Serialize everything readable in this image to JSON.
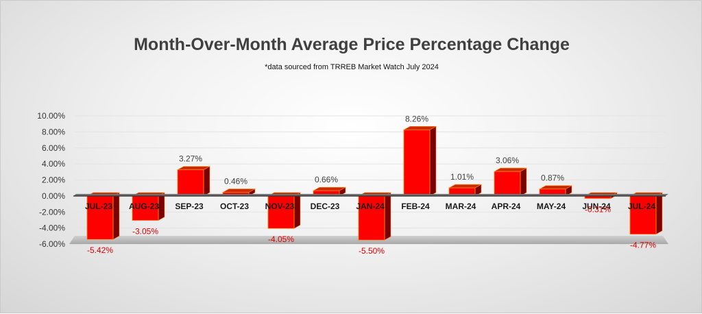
{
  "chart_data": {
    "type": "bar",
    "title": "Month-Over-Month Average Price Percentage Change",
    "subtitle": "*data sourced from TRREB Market Watch July 2024",
    "xlabel": "",
    "ylabel": "",
    "ylim": [
      -6,
      10
    ],
    "y_ticks": [
      "10.00%",
      "8.00%",
      "6.00%",
      "4.00%",
      "2.00%",
      "0.00%",
      "-2.00%",
      "-4.00%",
      "-6.00%"
    ],
    "categories": [
      "JUL-23",
      "AUG-23",
      "SEP-23",
      "OCT-23",
      "NOV-23",
      "DEC-23",
      "JAN-24",
      "FEB-24",
      "MAR-24",
      "APR-24",
      "MAY-24",
      "JUN-24",
      "JUL-24"
    ],
    "values": [
      -5.42,
      -3.05,
      3.27,
      0.46,
      -4.05,
      0.66,
      -5.5,
      8.26,
      1.01,
      3.06,
      0.87,
      -0.31,
      -4.77
    ],
    "data_labels": [
      "-5.42%",
      "-3.05%",
      "3.27%",
      "0.46%",
      "-4.05%",
      "0.66%",
      "-5.50%",
      "8.26%",
      "1.01%",
      "3.06%",
      "0.87%",
      "-0.31%",
      "-4.77%"
    ],
    "grid": true,
    "legend": "none",
    "colors": {
      "bar_front": "#ff0000",
      "bar_side": "#7a0000",
      "bar_top": "#cc2a00",
      "bar_edge": "#ff8c1a",
      "negative_label": "#e00000",
      "positive_label": "#404040",
      "zero_line": "#3a3a3a",
      "floor": "#b3b3b3"
    }
  }
}
